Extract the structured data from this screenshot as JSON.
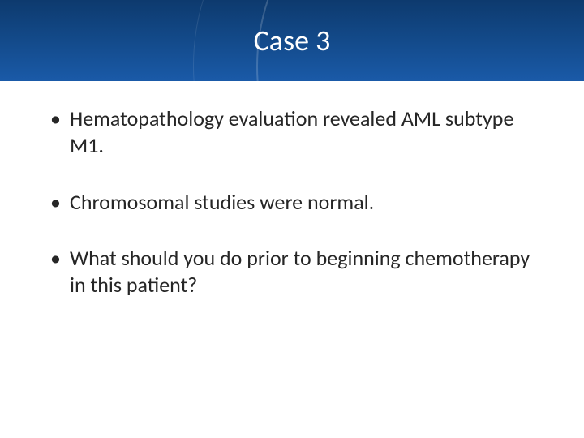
{
  "slide": {
    "title": "Case 3",
    "title_bar": {
      "bg_gradient_top": "#0d3a6e",
      "bg_gradient_mid": "#134a8a",
      "bg_gradient_bottom": "#1a5aa8",
      "title_color": "#ffffff",
      "title_fontsize": 36,
      "arc_color": "rgba(255,255,255,0.18)"
    },
    "bullets": [
      "Hematopathology evaluation revealed AML subtype M1.",
      "Chromosomal studies were normal.",
      "What should you do prior to beginning chemotherapy in this patient?"
    ],
    "body": {
      "text_color": "#262626",
      "fontsize": 26,
      "background_color": "#ffffff"
    }
  }
}
